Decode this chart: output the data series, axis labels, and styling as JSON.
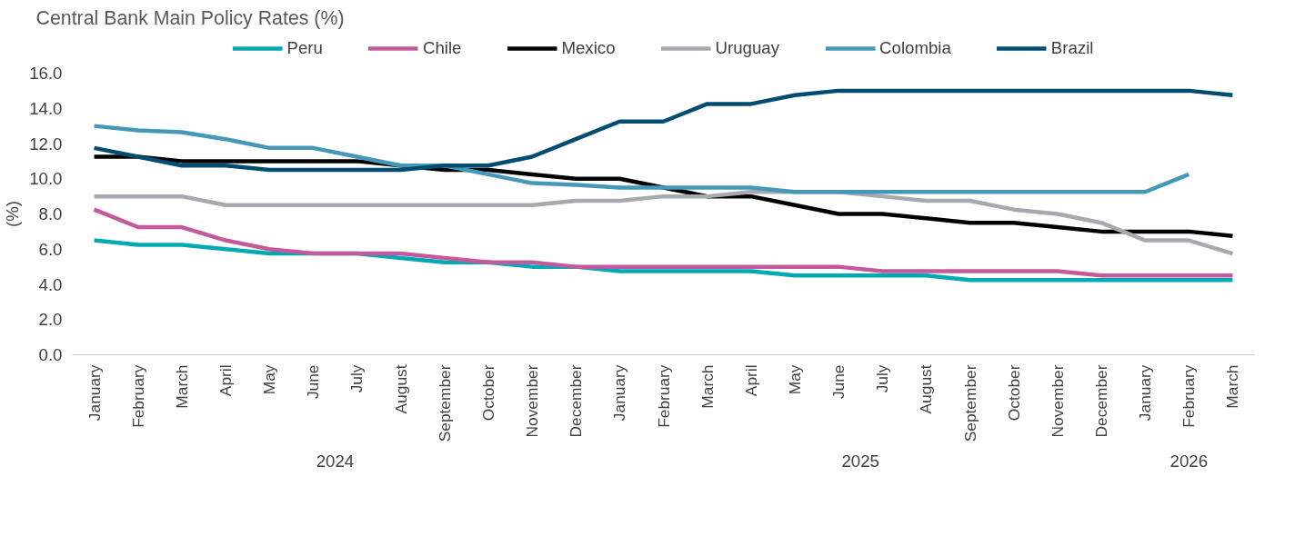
{
  "chart_data": {
    "type": "line",
    "title": "Central Bank Main Policy Rates (%)",
    "ylabel": "(%)",
    "categories": [
      "January",
      "February",
      "March",
      "April",
      "May",
      "June",
      "July",
      "August",
      "September",
      "October",
      "November",
      "December",
      "January",
      "February",
      "March",
      "April",
      "May",
      "June",
      "July",
      "August",
      "September",
      "October",
      "November",
      "December",
      "January",
      "February",
      "March"
    ],
    "annotations": [
      "2024",
      "2025",
      "2026"
    ],
    "series": [
      {
        "name": "Peru",
        "color": "#00aab4",
        "values": [
          6.5,
          6.25,
          6.25,
          6.0,
          5.75,
          5.75,
          5.75,
          5.5,
          5.25,
          5.25,
          5.0,
          5.0,
          4.75,
          4.75,
          4.75,
          4.75,
          4.5,
          4.5,
          4.5,
          4.5,
          4.25,
          4.25,
          4.25,
          4.25,
          4.25,
          4.25,
          4.25
        ]
      },
      {
        "name": "Chile",
        "color": "#c45a9c",
        "values": [
          8.25,
          7.25,
          7.25,
          6.5,
          6.0,
          5.75,
          5.75,
          5.75,
          5.5,
          5.25,
          5.25,
          5.0,
          5.0,
          5.0,
          5.0,
          5.0,
          5.0,
          5.0,
          4.75,
          4.75,
          4.75,
          4.75,
          4.75,
          4.5,
          4.5,
          4.5,
          4.5
        ]
      },
      {
        "name": "Mexico",
        "color": "#000000",
        "values": [
          11.25,
          11.25,
          11.0,
          11.0,
          11.0,
          11.0,
          11.0,
          10.75,
          10.5,
          10.5,
          10.25,
          10.0,
          10.0,
          9.5,
          9.0,
          9.0,
          8.5,
          8.0,
          8.0,
          7.75,
          7.5,
          7.5,
          7.25,
          7.0,
          7.0,
          7.0,
          6.75
        ]
      },
      {
        "name": "Uruguay",
        "color": "#a6a9ad",
        "values": [
          9.0,
          9.0,
          9.0,
          8.5,
          8.5,
          8.5,
          8.5,
          8.5,
          8.5,
          8.5,
          8.5,
          8.75,
          8.75,
          9.0,
          9.0,
          9.25,
          9.25,
          9.25,
          9.0,
          8.75,
          8.75,
          8.25,
          8.0,
          7.5,
          6.5,
          6.5,
          5.75
        ]
      },
      {
        "name": "Colombia",
        "color": "#4499b8",
        "values": [
          13.0,
          12.75,
          12.65,
          12.25,
          11.75,
          11.75,
          11.25,
          10.75,
          10.75,
          10.25,
          9.75,
          9.65,
          9.5,
          9.5,
          9.5,
          9.5,
          9.25,
          9.25,
          9.25,
          9.25,
          9.25,
          9.25,
          9.25,
          9.25,
          9.25,
          10.25,
          null
        ]
      },
      {
        "name": "Brazil",
        "color": "#004d70",
        "values": [
          11.75,
          11.25,
          10.75,
          10.75,
          10.5,
          10.5,
          10.5,
          10.5,
          10.75,
          10.75,
          11.25,
          12.25,
          13.25,
          13.25,
          14.25,
          14.25,
          14.75,
          15.0,
          15.0,
          15.0,
          15.0,
          15.0,
          15.0,
          15.0,
          15.0,
          15.0,
          14.75
        ]
      }
    ],
    "ylim": [
      0,
      16
    ],
    "yticks": [
      {
        "value": 0,
        "label": "0.0"
      },
      {
        "value": 2,
        "label": "2.0"
      },
      {
        "value": 4,
        "label": "4.0"
      },
      {
        "value": 6,
        "label": "6.0"
      },
      {
        "value": 8,
        "label": "8.0"
      },
      {
        "value": 10,
        "label": "10.0"
      },
      {
        "value": 12,
        "label": "12.0"
      },
      {
        "value": 14,
        "label": "14.0"
      },
      {
        "value": 16,
        "label": "16.0"
      }
    ],
    "legend": "top",
    "marker": "none",
    "line_style": "solid"
  }
}
